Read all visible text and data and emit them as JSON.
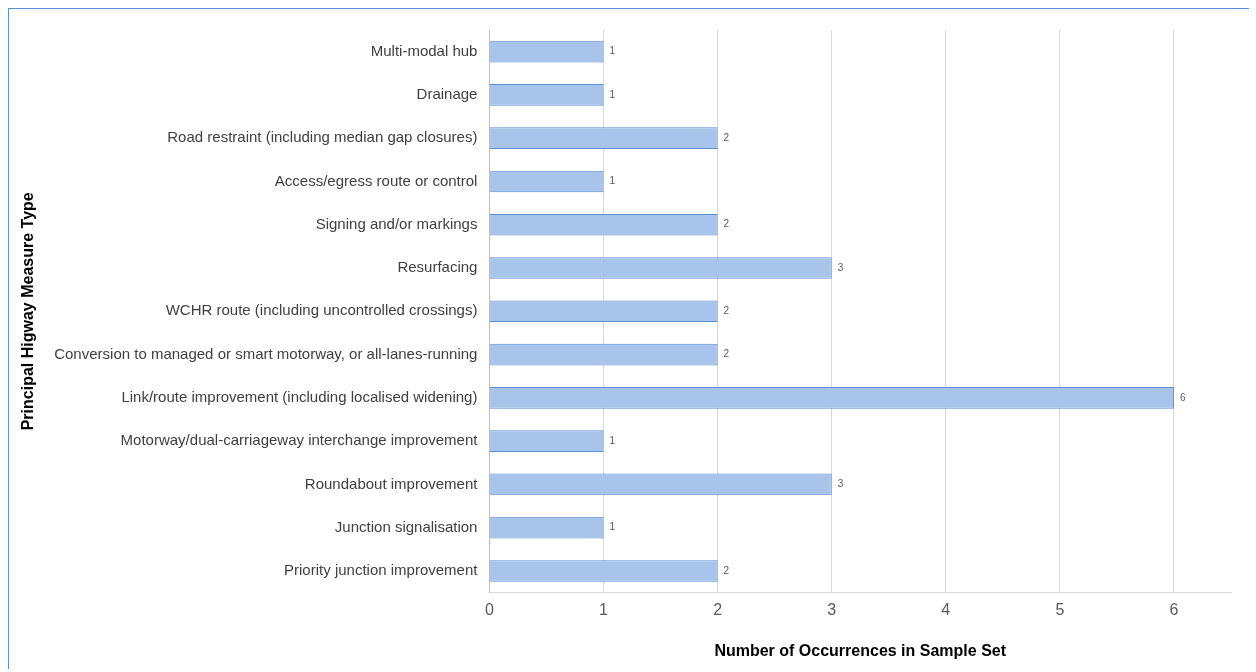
{
  "chart_data": {
    "type": "bar",
    "orientation": "horizontal",
    "categories": [
      "Multi-modal hub",
      "Drainage",
      "Road restraint (including median gap closures)",
      "Access/egress route or control",
      "Signing and/or markings",
      "Resurfacing",
      "WCHR route (including uncontrolled crossings)",
      "Conversion to managed or smart motorway, or all-lanes-running",
      "Link/route improvement (including localised widening)",
      "Motorway/dual-carriageway interchange improvement",
      "Roundabout improvement",
      "Junction signalisation",
      "Priority junction improvement"
    ],
    "values": [
      1,
      1,
      2,
      1,
      2,
      3,
      2,
      2,
      6,
      1,
      3,
      1,
      2
    ],
    "color": "#a9c4eb",
    "xlim": [
      0,
      6.5
    ],
    "xticks": [
      0,
      1,
      2,
      3,
      4,
      5,
      6
    ],
    "xlabel": "Number of Occurrences in Sample Set",
    "ylabel": "Principal Higway Measure Type",
    "grid": "x",
    "legend": false,
    "data_labels": true
  }
}
